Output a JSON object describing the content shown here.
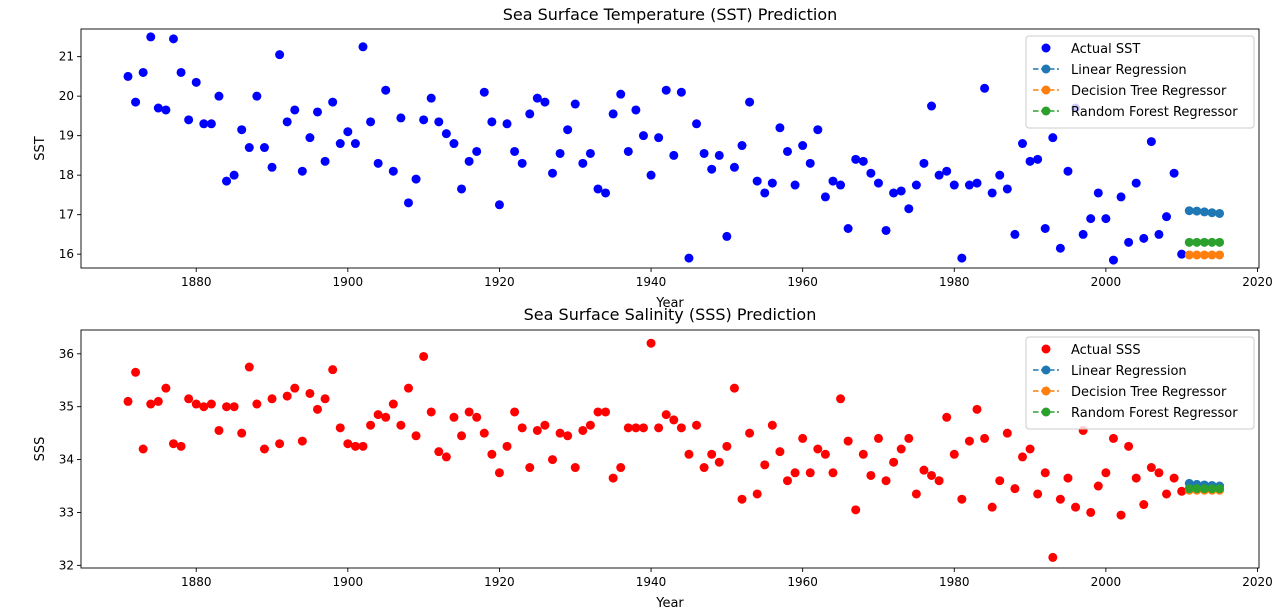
{
  "chart_data": [
    {
      "type": "scatter",
      "title": "Sea Surface Temperature (SST) Prediction",
      "xlabel": "Year",
      "ylabel": "SST",
      "xlim": [
        1864.8,
        2020.2
      ],
      "ylim": [
        15.65,
        21.7
      ],
      "xticks": [
        1880,
        1900,
        1920,
        1940,
        1960,
        1980,
        2000,
        2020
      ],
      "yticks": [
        16,
        17,
        18,
        19,
        20,
        21
      ],
      "legend_position": "top-right",
      "grid": false,
      "series": [
        {
          "name": "Actual SST",
          "color": "#0000ff",
          "style": "markers",
          "x": [
            1871,
            1872,
            1873,
            1874,
            1875,
            1876,
            1877,
            1878,
            1879,
            1880,
            1881,
            1882,
            1883,
            1884,
            1885,
            1886,
            1887,
            1888,
            1889,
            1890,
            1891,
            1892,
            1893,
            1894,
            1895,
            1896,
            1897,
            1898,
            1899,
            1900,
            1901,
            1902,
            1903,
            1904,
            1905,
            1906,
            1907,
            1908,
            1909,
            1910,
            1911,
            1912,
            1913,
            1914,
            1915,
            1916,
            1917,
            1918,
            1919,
            1920,
            1921,
            1922,
            1923,
            1924,
            1925,
            1926,
            1927,
            1928,
            1929,
            1930,
            1931,
            1932,
            1933,
            1934,
            1935,
            1936,
            1937,
            1938,
            1939,
            1940,
            1941,
            1942,
            1943,
            1944,
            1945,
            1946,
            1947,
            1948,
            1949,
            1950,
            1951,
            1952,
            1953,
            1954,
            1955,
            1956,
            1957,
            1958,
            1959,
            1960,
            1961,
            1962,
            1963,
            1964,
            1965,
            1966,
            1967,
            1968,
            1969,
            1970,
            1971,
            1972,
            1973,
            1974,
            1975,
            1976,
            1977,
            1978,
            1979,
            1980,
            1981,
            1982,
            1983,
            1984,
            1985,
            1986,
            1987,
            1988,
            1989,
            1990,
            1991,
            1992,
            1993,
            1994,
            1995,
            1996,
            1997,
            1998,
            1999,
            2000,
            2001,
            2002,
            2003,
            2004,
            2005,
            2006,
            2007,
            2008,
            2009,
            2010
          ],
          "y": [
            20.5,
            19.85,
            20.6,
            21.5,
            19.7,
            19.65,
            21.45,
            20.6,
            19.4,
            20.35,
            19.3,
            19.3,
            20.0,
            17.85,
            18.0,
            19.15,
            18.7,
            20.0,
            18.7,
            18.2,
            21.05,
            19.35,
            19.65,
            18.1,
            18.95,
            19.6,
            18.35,
            19.85,
            18.8,
            19.1,
            18.8,
            21.25,
            19.35,
            18.3,
            20.15,
            18.1,
            19.45,
            17.3,
            17.9,
            19.4,
            19.95,
            19.35,
            19.05,
            18.8,
            17.65,
            18.35,
            18.6,
            20.1,
            19.35,
            17.25,
            19.3,
            18.6,
            18.3,
            19.55,
            19.95,
            19.85,
            18.05,
            18.55,
            19.15,
            19.8,
            18.3,
            18.55,
            17.65,
            17.55,
            19.55,
            20.05,
            18.6,
            19.65,
            19.0,
            18.0,
            18.95,
            20.15,
            18.5,
            20.1,
            15.9,
            19.3,
            18.55,
            18.15,
            18.5,
            16.45,
            18.2,
            18.75,
            19.85,
            17.85,
            17.55,
            17.8,
            19.2,
            18.6,
            17.75,
            18.75,
            18.3,
            19.15,
            17.45,
            17.85,
            17.75,
            16.65,
            18.4,
            18.35,
            18.05,
            17.8,
            16.6,
            17.55,
            17.6,
            17.15,
            17.75,
            18.3,
            19.75,
            18.0,
            18.1,
            17.75,
            15.9,
            17.75,
            17.8,
            20.2,
            17.55,
            18.0,
            17.65,
            16.5,
            18.8,
            18.35,
            18.4,
            16.65,
            18.95,
            16.15,
            18.1,
            19.7,
            16.5,
            16.9,
            17.55,
            16.9,
            15.85,
            17.45,
            16.3,
            17.8,
            16.4,
            18.85,
            16.5,
            16.95,
            18.05,
            16.0
          ]
        },
        {
          "name": "Linear Regression",
          "color": "#1f77b4",
          "style": "dashed-line-markers",
          "x": [
            2011,
            2012,
            2013,
            2014,
            2015
          ],
          "y": [
            17.1,
            17.09,
            17.07,
            17.05,
            17.03
          ]
        },
        {
          "name": "Decision Tree Regressor",
          "color": "#ff7f0e",
          "style": "dashed-line-markers",
          "x": [
            2011,
            2012,
            2013,
            2014,
            2015
          ],
          "y": [
            15.98,
            15.98,
            15.98,
            15.98,
            15.98
          ]
        },
        {
          "name": "Random Forest Regressor",
          "color": "#2ca02c",
          "style": "dashed-line-markers",
          "x": [
            2011,
            2012,
            2013,
            2014,
            2015
          ],
          "y": [
            16.3,
            16.3,
            16.3,
            16.3,
            16.3
          ]
        }
      ]
    },
    {
      "type": "scatter",
      "title": "Sea Surface Salinity (SSS) Prediction",
      "xlabel": "Year",
      "ylabel": "SSS",
      "xlim": [
        1864.8,
        2020.2
      ],
      "ylim": [
        31.95,
        36.45
      ],
      "xticks": [
        1880,
        1900,
        1920,
        1940,
        1960,
        1980,
        2000,
        2020
      ],
      "yticks": [
        32,
        33,
        34,
        35,
        36
      ],
      "legend_position": "top-right",
      "grid": false,
      "series": [
        {
          "name": "Actual SSS",
          "color": "#ff0000",
          "style": "markers",
          "x": [
            1871,
            1872,
            1873,
            1874,
            1875,
            1876,
            1877,
            1878,
            1879,
            1880,
            1881,
            1882,
            1883,
            1884,
            1885,
            1886,
            1887,
            1888,
            1889,
            1890,
            1891,
            1892,
            1893,
            1894,
            1895,
            1896,
            1897,
            1898,
            1899,
            1900,
            1901,
            1902,
            1903,
            1904,
            1905,
            1906,
            1907,
            1908,
            1909,
            1910,
            1911,
            1912,
            1913,
            1914,
            1915,
            1916,
            1917,
            1918,
            1919,
            1920,
            1921,
            1922,
            1923,
            1924,
            1925,
            1926,
            1927,
            1928,
            1929,
            1930,
            1931,
            1932,
            1933,
            1934,
            1935,
            1936,
            1937,
            1938,
            1939,
            1940,
            1941,
            1942,
            1943,
            1944,
            1945,
            1946,
            1947,
            1948,
            1949,
            1950,
            1951,
            1952,
            1953,
            1954,
            1955,
            1956,
            1957,
            1958,
            1959,
            1960,
            1961,
            1962,
            1963,
            1964,
            1965,
            1966,
            1967,
            1968,
            1969,
            1970,
            1971,
            1972,
            1973,
            1974,
            1975,
            1976,
            1977,
            1978,
            1979,
            1980,
            1981,
            1982,
            1983,
            1984,
            1985,
            1986,
            1987,
            1988,
            1989,
            1990,
            1991,
            1992,
            1993,
            1994,
            1995,
            1996,
            1997,
            1998,
            1999,
            2000,
            2001,
            2002,
            2003,
            2004,
            2005,
            2006,
            2007,
            2008,
            2009,
            2010
          ],
          "y": [
            35.1,
            35.65,
            34.2,
            35.05,
            35.1,
            35.35,
            34.3,
            34.25,
            35.15,
            35.05,
            35.0,
            35.05,
            34.55,
            35.0,
            35.0,
            34.5,
            35.75,
            35.05,
            34.2,
            35.15,
            34.3,
            35.2,
            35.35,
            34.35,
            35.25,
            34.95,
            35.15,
            35.7,
            34.6,
            34.3,
            34.25,
            34.25,
            34.65,
            34.85,
            34.8,
            35.05,
            34.65,
            35.35,
            34.45,
            35.95,
            34.9,
            34.15,
            34.05,
            34.8,
            34.45,
            34.9,
            34.8,
            34.5,
            34.1,
            33.75,
            34.25,
            34.9,
            34.6,
            33.85,
            34.55,
            34.65,
            34.0,
            34.5,
            34.45,
            33.85,
            34.55,
            34.65,
            34.9,
            34.9,
            33.65,
            33.85,
            34.6,
            34.6,
            34.6,
            36.2,
            34.6,
            34.85,
            34.75,
            34.6,
            34.1,
            34.65,
            33.85,
            34.1,
            33.95,
            34.25,
            35.35,
            33.25,
            34.5,
            33.35,
            33.9,
            34.65,
            34.15,
            33.6,
            33.75,
            34.4,
            33.75,
            34.2,
            34.1,
            33.75,
            35.15,
            34.35,
            33.05,
            34.1,
            33.7,
            34.4,
            33.6,
            33.95,
            34.2,
            34.4,
            33.35,
            33.8,
            33.7,
            33.6,
            34.8,
            34.1,
            33.25,
            34.35,
            34.95,
            34.4,
            33.1,
            33.6,
            34.5,
            33.45,
            34.05,
            34.2,
            33.35,
            33.75,
            32.15,
            33.25,
            33.65,
            33.1,
            34.55,
            33.0,
            33.5,
            33.75,
            34.4,
            32.95,
            34.25,
            33.65,
            33.15,
            33.85,
            33.75,
            33.35,
            33.65,
            33.4
          ]
        },
        {
          "name": "Linear Regression",
          "color": "#1f77b4",
          "style": "dashed-line-markers",
          "x": [
            2011,
            2012,
            2013,
            2014,
            2015
          ],
          "y": [
            33.55,
            33.53,
            33.52,
            33.51,
            33.5
          ]
        },
        {
          "name": "Decision Tree Regressor",
          "color": "#ff7f0e",
          "style": "dashed-line-markers",
          "x": [
            2011,
            2012,
            2013,
            2014,
            2015
          ],
          "y": [
            33.42,
            33.42,
            33.42,
            33.42,
            33.42
          ]
        },
        {
          "name": "Random Forest Regressor",
          "color": "#2ca02c",
          "style": "dashed-line-markers",
          "x": [
            2011,
            2012,
            2013,
            2014,
            2015
          ],
          "y": [
            33.45,
            33.45,
            33.45,
            33.45,
            33.45
          ]
        }
      ]
    }
  ]
}
